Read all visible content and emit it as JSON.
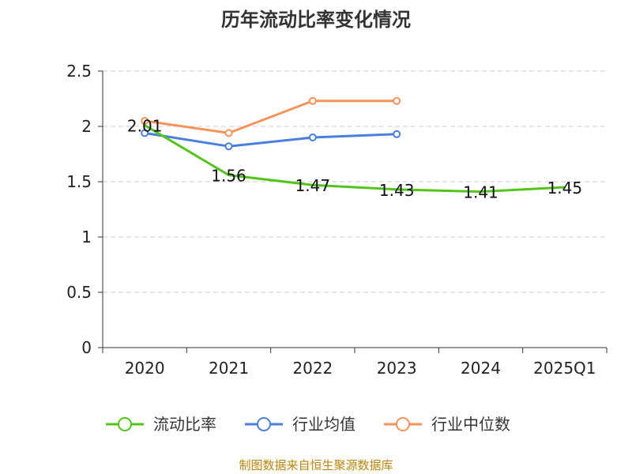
{
  "chart_data": {
    "type": "line",
    "title": "历年流动比率变化情况",
    "categories": [
      "2020",
      "2021",
      "2022",
      "2023",
      "2024",
      "2025Q1"
    ],
    "ylim": [
      0,
      2.5
    ],
    "yticks": [
      "0",
      "0.5",
      "1",
      "1.5",
      "2",
      "2.5"
    ],
    "grid": true,
    "legend_position": "bottom",
    "series": [
      {
        "name": "流动比率",
        "color": "#52c41a",
        "values": [
          2.01,
          1.56,
          1.47,
          1.43,
          1.41,
          1.45
        ],
        "labels": [
          "2.01",
          "1.56",
          "1.47",
          "1.43",
          "1.41",
          "1.45"
        ],
        "show_markers": false
      },
      {
        "name": "行业均值",
        "color": "#4a7fdc",
        "values": [
          1.94,
          1.82,
          1.9,
          1.93,
          null,
          null
        ],
        "show_markers": true
      },
      {
        "name": "行业中位数",
        "color": "#f5935a",
        "values": [
          2.05,
          1.94,
          2.23,
          2.23,
          null,
          null
        ],
        "show_markers": true
      }
    ],
    "source": "制图数据来自恒生聚源数据库"
  }
}
